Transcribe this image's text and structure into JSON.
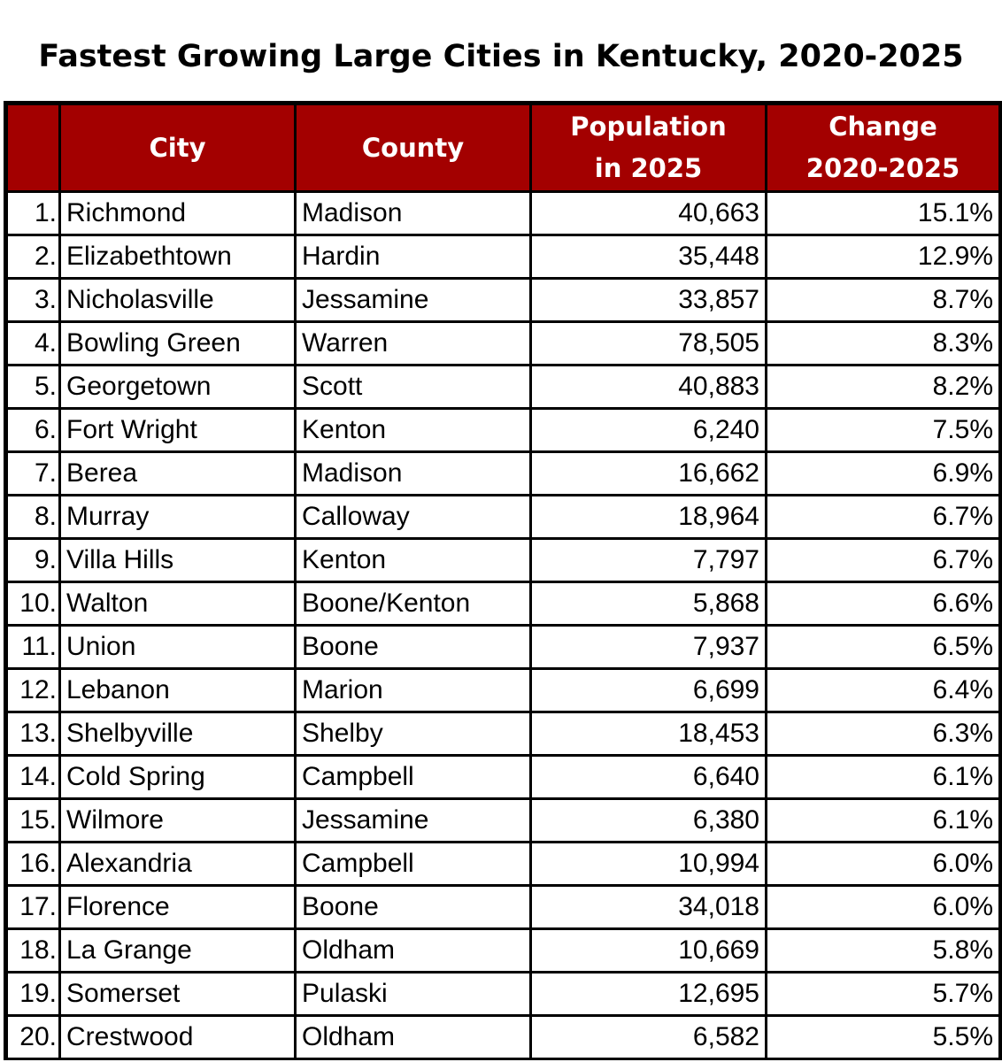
{
  "title": "Fastest Growing Large Cities in Kentucky, 2020-2025",
  "chart_data": {
    "type": "table",
    "title": "Fastest Growing Large Cities in Kentucky, 2020-2025",
    "columns": {
      "rank": "",
      "city": "City",
      "county": "County",
      "population_line1": "Population",
      "population_line2": "in 2025",
      "change_line1": "Change",
      "change_line2": "2020-2025"
    },
    "header_color": "#a30000",
    "rows": [
      {
        "rank": "1.",
        "city": "Richmond",
        "county": "Madison",
        "population": "40,663",
        "change": "15.1%"
      },
      {
        "rank": "2.",
        "city": "Elizabethtown",
        "county": "Hardin",
        "population": "35,448",
        "change": "12.9%"
      },
      {
        "rank": "3.",
        "city": "Nicholasville",
        "county": "Jessamine",
        "population": "33,857",
        "change": "8.7%"
      },
      {
        "rank": "4.",
        "city": "Bowling Green",
        "county": "Warren",
        "population": "78,505",
        "change": "8.3%"
      },
      {
        "rank": "5.",
        "city": "Georgetown",
        "county": "Scott",
        "population": "40,883",
        "change": "8.2%"
      },
      {
        "rank": "6.",
        "city": "Fort Wright",
        "county": "Kenton",
        "population": "6,240",
        "change": "7.5%"
      },
      {
        "rank": "7.",
        "city": "Berea",
        "county": "Madison",
        "population": "16,662",
        "change": "6.9%"
      },
      {
        "rank": "8.",
        "city": "Murray",
        "county": "Calloway",
        "population": "18,964",
        "change": "6.7%"
      },
      {
        "rank": "9.",
        "city": "Villa Hills",
        "county": "Kenton",
        "population": "7,797",
        "change": "6.7%"
      },
      {
        "rank": "10.",
        "city": "Walton",
        "county": "Boone/Kenton",
        "population": "5,868",
        "change": "6.6%"
      },
      {
        "rank": "11.",
        "city": "Union",
        "county": "Boone",
        "population": "7,937",
        "change": "6.5%"
      },
      {
        "rank": "12.",
        "city": "Lebanon",
        "county": "Marion",
        "population": "6,699",
        "change": "6.4%"
      },
      {
        "rank": "13.",
        "city": "Shelbyville",
        "county": "Shelby",
        "population": "18,453",
        "change": "6.3%"
      },
      {
        "rank": "14.",
        "city": "Cold Spring",
        "county": "Campbell",
        "population": "6,640",
        "change": "6.1%"
      },
      {
        "rank": "15.",
        "city": "Wilmore",
        "county": "Jessamine",
        "population": "6,380",
        "change": "6.1%"
      },
      {
        "rank": "16.",
        "city": "Alexandria",
        "county": "Campbell",
        "population": "10,994",
        "change": "6.0%"
      },
      {
        "rank": "17.",
        "city": "Florence",
        "county": "Boone",
        "population": "34,018",
        "change": "6.0%"
      },
      {
        "rank": "18.",
        "city": "La Grange",
        "county": "Oldham",
        "population": "10,669",
        "change": "5.8%"
      },
      {
        "rank": "19.",
        "city": "Somerset",
        "county": "Pulaski",
        "population": "12,695",
        "change": "5.7%"
      },
      {
        "rank": "20.",
        "city": "Crestwood",
        "county": "Oldham",
        "population": "6,582",
        "change": "5.5%"
      }
    ]
  }
}
